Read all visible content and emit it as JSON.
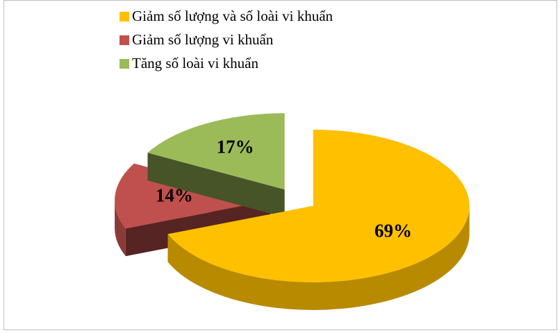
{
  "chart_data": {
    "type": "pie",
    "categories": [
      "Giảm số lượng và số loài vi khuẩn",
      "Giảm số lượng vi khuẩn",
      "Tăng số loài vi khuẩn"
    ],
    "values": [
      69,
      14,
      17
    ],
    "value_labels": [
      "69%",
      "14%",
      "17%"
    ],
    "colors": [
      "#FFC000",
      "#C0504D",
      "#9BBB59"
    ],
    "legend": "top"
  }
}
